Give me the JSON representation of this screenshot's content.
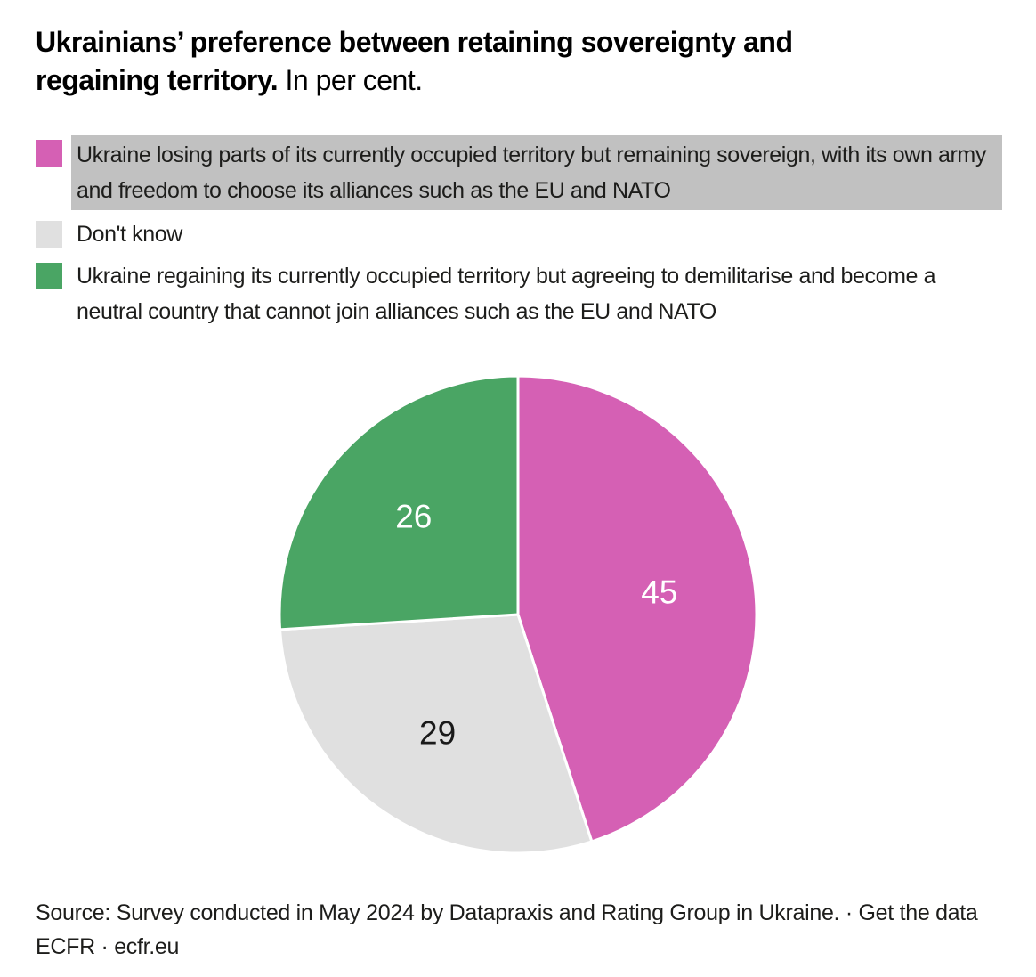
{
  "title": {
    "bold_line1": "Ukrainians’ preference between retaining sovereignty and",
    "bold_line2": "regaining territory.",
    "suffix": "In per cent."
  },
  "legend": {
    "highlight_color": "#c1c1c1",
    "items": [
      {
        "label": "Ukraine losing parts of its currently occupied territory but remaining sovereign, with its own army and freedom to choose its alliances such as the EU and NATO",
        "color": "#d560b4",
        "highlighted": true
      },
      {
        "label": "Don't know",
        "color": "#e0e0e0",
        "highlighted": false
      },
      {
        "label": "Ukraine regaining its currently occupied territory but agreeing to demilitarise and become a neutral country that cannot join alliances such as the EU and NATO",
        "color": "#4aa564",
        "highlighted": false
      }
    ]
  },
  "chart_data": {
    "type": "pie",
    "title": "Ukrainians’ preference between retaining sovereignty and regaining territory. In per cent.",
    "unit": "per cent",
    "start_angle_deg": 0,
    "direction": "clockwise",
    "slice_gap_color": "#ffffff",
    "slices": [
      {
        "label": "Ukraine losing parts of its currently occupied territory but remaining sovereign, with its own army and freedom to choose its alliances such as the EU and NATO",
        "value": 45,
        "color": "#d560b4",
        "label_color": "#ffffff"
      },
      {
        "label": "Don't know",
        "value": 29,
        "color": "#e0e0e0",
        "label_color": "#1a1a1a"
      },
      {
        "label": "Ukraine regaining its currently occupied territory but agreeing to demilitarise and become a neutral country that cannot join alliances such as the EU and NATO",
        "value": 26,
        "color": "#4aa564",
        "label_color": "#ffffff"
      }
    ]
  },
  "footer": {
    "source_text": "Source: Survey conducted in May 2024 by Datapraxis and Rating Group in Ukraine. ·",
    "get_data_label": "Get the data",
    "byline_org": "ECFR ·",
    "byline_link": "ecfr.eu"
  }
}
